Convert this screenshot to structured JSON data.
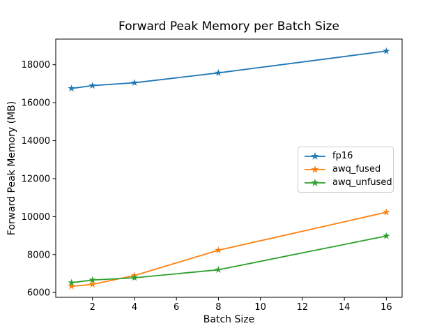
{
  "chart_data": {
    "type": "line",
    "title": "Forward Peak Memory per Batch Size",
    "xlabel": "Batch Size",
    "ylabel": "Forward Peak Memory (MB)",
    "x": [
      1,
      2,
      4,
      8,
      16
    ],
    "series": [
      {
        "name": "fp16",
        "color": "#1f77b4",
        "marker": "star",
        "values": [
          16750,
          16900,
          17050,
          17570,
          18720
        ]
      },
      {
        "name": "awq_fused",
        "color": "#ff7f0e",
        "marker": "star",
        "values": [
          6330,
          6430,
          6900,
          8230,
          10230
        ]
      },
      {
        "name": "awq_unfused",
        "color": "#2ca02c",
        "marker": "star",
        "values": [
          6520,
          6660,
          6780,
          7200,
          8980
        ]
      }
    ],
    "xticks": [
      2,
      4,
      6,
      8,
      10,
      12,
      14,
      16
    ],
    "yticks": [
      6000,
      8000,
      10000,
      12000,
      14000,
      16000,
      18000
    ],
    "xlim": [
      0.25,
      16.75
    ],
    "ylim": [
      5750,
      19350
    ],
    "grid": false,
    "legend_position": "center right",
    "axis_color": "#000000",
    "background_color": "#ffffff"
  }
}
